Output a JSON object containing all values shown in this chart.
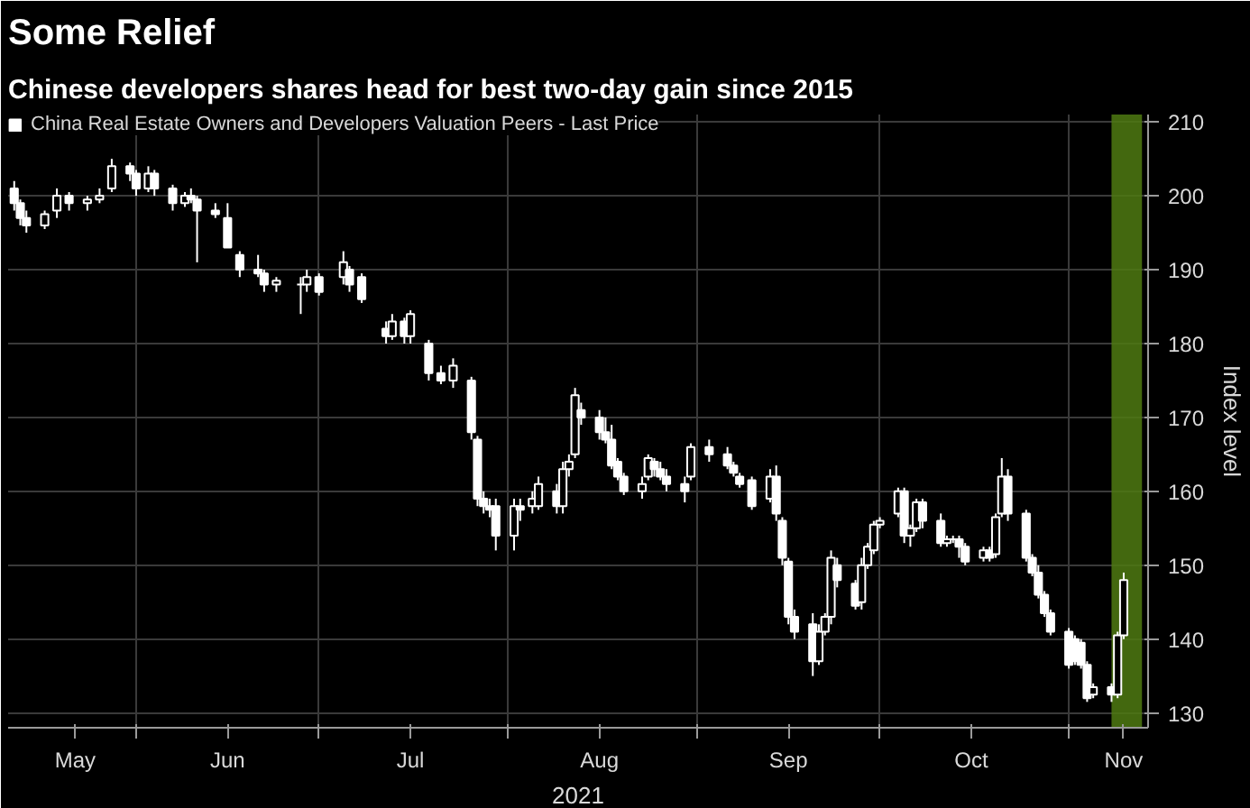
{
  "chart_data": {
    "type": "candlestick",
    "title": "Some Relief",
    "subtitle": "Chinese developers shares head for best two-day gain since 2015",
    "xlabel": "2021",
    "ylabel": "Index level",
    "xlim": [
      "2021-05-11",
      "2021-11-14"
    ],
    "xticks": [
      {
        "value": "2021-05-22",
        "label": "May"
      },
      {
        "value": "2021-06-01",
        "label": null
      },
      {
        "value": "2021-06-16",
        "label": "Jun"
      },
      {
        "value": "2021-07-01",
        "label": null
      },
      {
        "value": "2021-07-16",
        "label": "Jul"
      },
      {
        "value": "2021-08-01",
        "label": null
      },
      {
        "value": "2021-08-16",
        "label": "Aug"
      },
      {
        "value": "2021-09-01",
        "label": null
      },
      {
        "value": "2021-09-16",
        "label": "Sep"
      },
      {
        "value": "2021-10-01",
        "label": null
      },
      {
        "value": "2021-10-16",
        "label": "Oct"
      },
      {
        "value": "2021-11-01",
        "label": null
      },
      {
        "value": "2021-11-10",
        "label": "Nov"
      }
    ],
    "ylim": [
      128,
      211
    ],
    "yticks": [
      130,
      140,
      150,
      160,
      170,
      180,
      190,
      200,
      210
    ],
    "grid": true,
    "legend": "top",
    "bands": [
      {
        "axis": "x",
        "from": "2021-11-08",
        "to": "2021-11-13",
        "color": "#4f7a12"
      }
    ],
    "series": [
      {
        "name": "China Real Estate Owners and Developers Valuation Peers - Last Price",
        "color": "#ffffff",
        "x": [
          "2021-05-12",
          "2021-05-13",
          "2021-05-14",
          "2021-05-17",
          "2021-05-19",
          "2021-05-21",
          "2021-05-24",
          "2021-05-26",
          "2021-05-28",
          "2021-05-31",
          "2021-06-01",
          "2021-06-03",
          "2021-06-04",
          "2021-06-07",
          "2021-06-09",
          "2021-06-10",
          "2021-06-11",
          "2021-06-14",
          "2021-06-16",
          "2021-06-18",
          "2021-06-21",
          "2021-06-22",
          "2021-06-24",
          "2021-06-28",
          "2021-06-29",
          "2021-07-01",
          "2021-07-05",
          "2021-07-06",
          "2021-07-08",
          "2021-07-12",
          "2021-07-13",
          "2021-07-15",
          "2021-07-16",
          "2021-07-19",
          "2021-07-21",
          "2021-07-23",
          "2021-07-26",
          "2021-07-27",
          "2021-07-28",
          "2021-07-29",
          "2021-07-30",
          "2021-08-02",
          "2021-08-03",
          "2021-08-05",
          "2021-08-06",
          "2021-08-09",
          "2021-08-10",
          "2021-08-11",
          "2021-08-12",
          "2021-08-13",
          "2021-08-16",
          "2021-08-17",
          "2021-08-18",
          "2021-08-19",
          "2021-08-20",
          "2021-08-23",
          "2021-08-24",
          "2021-08-25",
          "2021-08-26",
          "2021-08-27",
          "2021-08-30",
          "2021-08-31",
          "2021-09-03",
          "2021-09-06",
          "2021-09-07",
          "2021-09-08",
          "2021-09-10",
          "2021-09-13",
          "2021-09-14",
          "2021-09-15",
          "2021-09-16",
          "2021-09-17",
          "2021-09-20",
          "2021-09-21",
          "2021-09-22",
          "2021-09-23",
          "2021-09-24",
          "2021-09-27",
          "2021-09-28",
          "2021-09-29",
          "2021-09-30",
          "2021-10-01",
          "2021-10-04",
          "2021-10-05",
          "2021-10-06",
          "2021-10-07",
          "2021-10-08",
          "2021-10-11",
          "2021-10-12",
          "2021-10-13",
          "2021-10-14",
          "2021-10-15",
          "2021-10-18",
          "2021-10-19",
          "2021-10-20",
          "2021-10-21",
          "2021-10-22",
          "2021-10-25",
          "2021-10-26",
          "2021-10-27",
          "2021-10-28",
          "2021-10-29",
          "2021-11-01",
          "2021-11-02",
          "2021-11-03",
          "2021-11-04",
          "2021-11-05",
          "2021-11-08",
          "2021-11-09",
          "2021-11-10"
        ],
        "ohlc": [
          [
            201,
            202,
            198,
            199
          ],
          [
            199,
            199.5,
            196,
            197
          ],
          [
            197,
            198,
            195,
            196
          ],
          [
            196,
            198,
            195.5,
            197.5
          ],
          [
            198,
            201,
            197,
            200
          ],
          [
            200,
            200.5,
            198,
            199
          ],
          [
            199,
            200,
            198,
            199.5
          ],
          [
            199.5,
            201,
            199,
            200
          ],
          [
            201,
            205,
            200.5,
            204
          ],
          [
            204,
            204.5,
            202,
            203
          ],
          [
            203,
            203.5,
            200,
            201
          ],
          [
            201,
            204,
            200.5,
            203
          ],
          [
            203,
            203.5,
            200,
            201
          ],
          [
            201,
            201.5,
            198,
            199
          ],
          [
            199,
            200.5,
            198.5,
            200
          ],
          [
            200,
            201,
            199,
            199.5
          ],
          [
            199.5,
            200,
            191,
            198
          ],
          [
            198,
            199,
            197,
            197.5
          ],
          [
            197,
            199,
            193,
            193
          ],
          [
            192,
            192.5,
            189,
            190
          ],
          [
            190,
            192,
            189,
            189.5
          ],
          [
            189.5,
            190,
            187,
            188
          ],
          [
            188,
            189,
            187,
            188.5
          ],
          [
            188,
            189,
            184,
            188
          ],
          [
            188,
            190,
            187,
            189
          ],
          [
            189,
            189.5,
            186.5,
            187
          ],
          [
            189,
            192.5,
            188,
            191
          ],
          [
            190,
            190.5,
            187,
            188
          ],
          [
            189,
            189.5,
            185.5,
            186
          ],
          [
            182,
            183,
            180,
            181
          ],
          [
            181,
            184,
            180.5,
            183
          ],
          [
            183,
            183.5,
            180,
            181
          ],
          [
            181,
            184.5,
            180,
            184
          ],
          [
            180,
            180.5,
            175,
            176
          ],
          [
            176,
            177,
            174.5,
            175
          ],
          [
            175,
            178,
            174,
            177
          ],
          [
            175,
            175.5,
            167,
            168
          ],
          [
            167,
            167.5,
            158,
            159
          ],
          [
            159,
            160,
            157,
            158
          ],
          [
            158,
            159,
            156.5,
            157.5
          ],
          [
            158,
            159,
            152,
            154
          ],
          [
            154,
            159,
            152,
            158
          ],
          [
            158,
            159,
            156,
            157.5
          ],
          [
            158,
            160,
            157,
            159
          ],
          [
            158,
            162,
            157.5,
            161
          ],
          [
            160,
            161,
            157,
            158
          ],
          [
            158,
            164,
            157,
            163
          ],
          [
            163,
            165,
            162,
            164
          ],
          [
            165,
            174,
            164.5,
            173
          ],
          [
            171,
            172,
            169,
            170
          ],
          [
            170,
            171,
            167,
            168
          ],
          [
            168,
            170,
            166.5,
            167
          ],
          [
            167,
            169,
            163,
            163.5
          ],
          [
            164,
            164.5,
            161.5,
            162
          ],
          [
            162,
            162.5,
            159.5,
            160
          ],
          [
            160,
            162,
            159,
            161
          ],
          [
            162,
            165,
            161.5,
            164.5
          ],
          [
            164,
            164.5,
            162,
            163
          ],
          [
            163,
            164,
            161.5,
            162
          ],
          [
            162,
            163,
            160,
            161
          ],
          [
            161,
            162,
            158.5,
            160
          ],
          [
            162,
            166.5,
            161.5,
            166
          ],
          [
            166,
            167,
            164,
            165
          ],
          [
            165,
            166,
            163,
            163.5
          ],
          [
            163.5,
            164,
            162,
            162.5
          ],
          [
            162,
            162.5,
            160.5,
            161
          ],
          [
            161.5,
            162,
            157.5,
            158
          ],
          [
            159,
            163,
            158.5,
            162
          ],
          [
            162,
            163.5,
            156,
            157
          ],
          [
            156,
            156.5,
            150,
            151
          ],
          [
            150.5,
            151,
            142,
            143
          ],
          [
            143,
            144,
            140,
            141
          ],
          [
            142,
            143.5,
            135,
            137
          ],
          [
            137,
            142,
            136.5,
            141
          ],
          [
            141,
            143.5,
            140.5,
            143
          ],
          [
            143,
            152,
            142,
            151
          ],
          [
            150,
            151,
            147,
            148
          ],
          [
            147.5,
            148,
            144,
            144.5
          ],
          [
            145,
            151,
            144,
            150
          ],
          [
            150,
            153,
            149.5,
            152.5
          ],
          [
            152,
            156,
            151.5,
            155.5
          ],
          [
            155.5,
            156.5,
            155,
            156
          ],
          [
            157,
            160.5,
            156.5,
            160
          ],
          [
            160,
            160.5,
            153,
            154
          ],
          [
            154,
            155.5,
            152.5,
            155
          ],
          [
            155,
            159,
            154.5,
            158.5
          ],
          [
            158.5,
            159,
            155,
            156
          ],
          [
            156,
            157,
            152.5,
            153
          ],
          [
            153,
            154,
            152.5,
            153.5
          ],
          [
            153.5,
            154,
            153,
            153.5
          ],
          [
            153.5,
            154,
            151,
            152.5
          ],
          [
            152.5,
            153,
            150,
            150.5
          ],
          [
            151,
            152.5,
            150.5,
            152
          ],
          [
            152,
            152.5,
            150.5,
            151
          ],
          [
            151.5,
            157,
            151,
            156.5
          ],
          [
            157,
            164.5,
            156.5,
            162
          ],
          [
            162,
            163,
            156,
            157
          ],
          [
            157,
            157.5,
            150.5,
            151
          ],
          [
            151,
            151.5,
            148.5,
            149
          ],
          [
            149,
            150,
            145.5,
            146
          ],
          [
            146,
            146.5,
            143,
            143.5
          ],
          [
            143.5,
            144,
            140.5,
            141
          ],
          [
            141,
            141.5,
            136,
            136.5
          ],
          [
            140,
            140.5,
            136.5,
            137
          ],
          [
            139.5,
            140,
            136,
            136.5
          ],
          [
            136.5,
            137,
            131.5,
            132
          ],
          [
            132.5,
            134,
            132,
            133.5
          ],
          [
            133.5,
            134,
            131.5,
            132.5
          ],
          [
            132.5,
            141,
            132,
            140.5
          ],
          [
            140.5,
            149,
            140,
            148
          ]
        ]
      }
    ]
  }
}
